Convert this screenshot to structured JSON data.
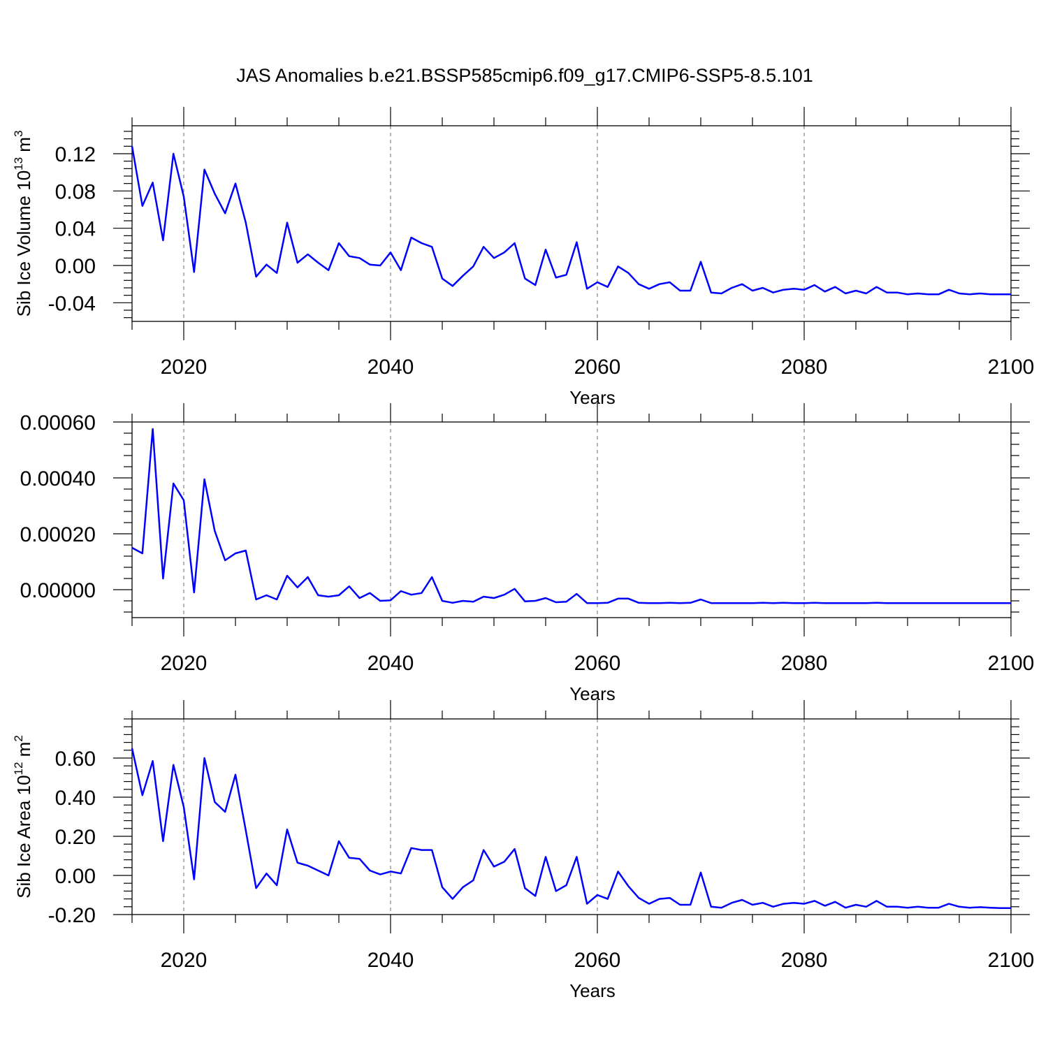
{
  "figure": {
    "title": "JAS Anomalies b.e21.BSSP585cmip6.f09_g17.CMIP6-SSP5-8.5.101",
    "line_color": "#0000ff"
  },
  "chart_data": [
    {
      "type": "line",
      "title": "",
      "xlabel": "Years",
      "ylabel": "Sib Ice Volume 10",
      "ylabel_exp": "13",
      "ylabel_unit": " m",
      "ylabel_unit_exp": "3",
      "xlim": [
        2015,
        2100
      ],
      "ylim": [
        -0.06,
        0.15
      ],
      "x_ticks": [
        2020,
        2040,
        2060,
        2080,
        2100
      ],
      "y_ticks": [
        -0.04,
        0.0,
        0.04,
        0.08,
        0.12
      ],
      "y_tick_labels": [
        "-0.04",
        "0.00",
        "0.04",
        "0.08",
        "0.12"
      ],
      "grid": "vertical dashed",
      "series": [
        {
          "x": [
            2015,
            2016,
            2017,
            2018,
            2019,
            2020,
            2021,
            2022,
            2023,
            2024,
            2025,
            2026,
            2027,
            2028,
            2029,
            2030,
            2031,
            2032,
            2033,
            2034,
            2035,
            2036,
            2037,
            2038,
            2039,
            2040,
            2041,
            2042,
            2043,
            2044,
            2045,
            2046,
            2047,
            2048,
            2049,
            2050,
            2051,
            2052,
            2053,
            2054,
            2055,
            2056,
            2057,
            2058,
            2059,
            2060,
            2061,
            2062,
            2063,
            2064,
            2065,
            2066,
            2067,
            2068,
            2069,
            2070,
            2071,
            2072,
            2073,
            2074,
            2075,
            2076,
            2077,
            2078,
            2079,
            2080,
            2081,
            2082,
            2083,
            2084,
            2085,
            2086,
            2087,
            2088,
            2089,
            2090,
            2091,
            2092,
            2093,
            2094,
            2095,
            2096,
            2097,
            2098,
            2099,
            2100
          ],
          "y": [
            0.128,
            0.064,
            0.089,
            0.027,
            0.12,
            0.074,
            -0.007,
            0.103,
            0.077,
            0.056,
            0.088,
            0.046,
            -0.012,
            0.001,
            -0.008,
            0.046,
            0.003,
            0.012,
            0.003,
            -0.005,
            0.024,
            0.01,
            0.008,
            0.001,
            0.0,
            0.014,
            -0.005,
            0.03,
            0.024,
            0.02,
            -0.014,
            -0.022,
            -0.011,
            -0.001,
            0.02,
            0.008,
            0.014,
            0.024,
            -0.014,
            -0.021,
            0.017,
            -0.013,
            -0.01,
            0.025,
            -0.025,
            -0.018,
            -0.023,
            -0.001,
            -0.008,
            -0.02,
            -0.025,
            -0.02,
            -0.018,
            -0.027,
            -0.027,
            0.004,
            -0.029,
            -0.03,
            -0.024,
            -0.02,
            -0.027,
            -0.024,
            -0.029,
            -0.026,
            -0.025,
            -0.026,
            -0.021,
            -0.028,
            -0.023,
            -0.03,
            -0.027,
            -0.03,
            -0.023,
            -0.029,
            -0.029,
            -0.031,
            -0.03,
            -0.031,
            -0.031,
            -0.026,
            -0.03,
            -0.031,
            -0.03,
            -0.031,
            -0.031,
            -0.031
          ]
        }
      ]
    },
    {
      "type": "line",
      "title": "",
      "xlabel": "Years",
      "ylabel": "",
      "ylabel_exp": "",
      "ylabel_unit": "",
      "ylabel_unit_exp": "",
      "xlim": [
        2015,
        2100
      ],
      "ylim": [
        -0.0001,
        0.0006
      ],
      "x_ticks": [
        2020,
        2040,
        2060,
        2080,
        2100
      ],
      "y_ticks": [
        0.0,
        0.0002,
        0.0004,
        0.0006
      ],
      "y_tick_labels": [
        "0.00000",
        "0.00020",
        "0.00040",
        "0.00060"
      ],
      "grid": "vertical dashed",
      "series": [
        {
          "x": [
            2015,
            2016,
            2017,
            2018,
            2019,
            2020,
            2021,
            2022,
            2023,
            2024,
            2025,
            2026,
            2027,
            2028,
            2029,
            2030,
            2031,
            2032,
            2033,
            2034,
            2035,
            2036,
            2037,
            2038,
            2039,
            2040,
            2041,
            2042,
            2043,
            2044,
            2045,
            2046,
            2047,
            2048,
            2049,
            2050,
            2051,
            2052,
            2053,
            2054,
            2055,
            2056,
            2057,
            2058,
            2059,
            2060,
            2061,
            2062,
            2063,
            2064,
            2065,
            2066,
            2067,
            2068,
            2069,
            2070,
            2071,
            2072,
            2073,
            2074,
            2075,
            2076,
            2077,
            2078,
            2079,
            2080,
            2081,
            2082,
            2083,
            2084,
            2085,
            2086,
            2087,
            2088,
            2089,
            2090,
            2091,
            2092,
            2093,
            2094,
            2095,
            2096,
            2097,
            2098,
            2099,
            2100
          ],
          "y": [
            0.00015,
            0.00013,
            0.000575,
            4e-05,
            0.00038,
            0.00032,
            -1e-05,
            0.000395,
            0.00021,
            0.000105,
            0.00013,
            0.00014,
            -3.5e-05,
            -2e-05,
            -3.5e-05,
            5e-05,
            8e-06,
            4.5e-05,
            -2e-05,
            -2.5e-05,
            -2e-05,
            1.2e-05,
            -3e-05,
            -1.2e-05,
            -4e-05,
            -3.8e-05,
            -5e-06,
            -1.8e-05,
            -1.2e-05,
            4.5e-05,
            -4e-05,
            -4.7e-05,
            -4e-05,
            -4.3e-05,
            -2.5e-05,
            -3e-05,
            -1.8e-05,
            3e-06,
            -4.2e-05,
            -4e-05,
            -3e-05,
            -4.5e-05,
            -4.3e-05,
            -1.5e-05,
            -4.8e-05,
            -4.8e-05,
            -4.7e-05,
            -3.2e-05,
            -3.2e-05,
            -4.7e-05,
            -4.8e-05,
            -4.8e-05,
            -4.7e-05,
            -4.8e-05,
            -4.7e-05,
            -3.5e-05,
            -4.8e-05,
            -4.8e-05,
            -4.8e-05,
            -4.8e-05,
            -4.8e-05,
            -4.7e-05,
            -4.8e-05,
            -4.7e-05,
            -4.8e-05,
            -4.8e-05,
            -4.7e-05,
            -4.8e-05,
            -4.8e-05,
            -4.8e-05,
            -4.8e-05,
            -4.8e-05,
            -4.7e-05,
            -4.8e-05,
            -4.8e-05,
            -4.8e-05,
            -4.8e-05,
            -4.8e-05,
            -4.8e-05,
            -4.8e-05,
            -4.8e-05,
            -4.8e-05,
            -4.8e-05,
            -4.8e-05,
            -4.8e-05,
            -4.8e-05
          ]
        }
      ]
    },
    {
      "type": "line",
      "title": "",
      "xlabel": "Years",
      "ylabel": "Sib Ice Area 10",
      "ylabel_exp": "12",
      "ylabel_unit": " m",
      "ylabel_unit_exp": "2",
      "xlim": [
        2015,
        2100
      ],
      "ylim": [
        -0.2,
        0.8
      ],
      "x_ticks": [
        2020,
        2040,
        2060,
        2080,
        2100
      ],
      "y_ticks": [
        -0.2,
        0.0,
        0.2,
        0.4,
        0.6
      ],
      "y_tick_labels": [
        "-0.20",
        "0.00",
        "0.20",
        "0.40",
        "0.60"
      ],
      "grid": "vertical dashed",
      "series": [
        {
          "x": [
            2015,
            2016,
            2017,
            2018,
            2019,
            2020,
            2021,
            2022,
            2023,
            2024,
            2025,
            2026,
            2027,
            2028,
            2029,
            2030,
            2031,
            2032,
            2033,
            2034,
            2035,
            2036,
            2037,
            2038,
            2039,
            2040,
            2041,
            2042,
            2043,
            2044,
            2045,
            2046,
            2047,
            2048,
            2049,
            2050,
            2051,
            2052,
            2053,
            2054,
            2055,
            2056,
            2057,
            2058,
            2059,
            2060,
            2061,
            2062,
            2063,
            2064,
            2065,
            2066,
            2067,
            2068,
            2069,
            2070,
            2071,
            2072,
            2073,
            2074,
            2075,
            2076,
            2077,
            2078,
            2079,
            2080,
            2081,
            2082,
            2083,
            2084,
            2085,
            2086,
            2087,
            2088,
            2089,
            2090,
            2091,
            2092,
            2093,
            2094,
            2095,
            2096,
            2097,
            2098,
            2099,
            2100
          ],
          "y": [
            0.65,
            0.41,
            0.585,
            0.175,
            0.565,
            0.35,
            -0.02,
            0.6,
            0.375,
            0.325,
            0.515,
            0.23,
            -0.065,
            0.01,
            -0.05,
            0.235,
            0.065,
            0.05,
            0.025,
            0.0,
            0.175,
            0.09,
            0.085,
            0.025,
            0.005,
            0.02,
            0.01,
            0.14,
            0.13,
            0.13,
            -0.06,
            -0.12,
            -0.06,
            -0.025,
            0.13,
            0.045,
            0.07,
            0.135,
            -0.065,
            -0.105,
            0.095,
            -0.08,
            -0.05,
            0.095,
            -0.145,
            -0.1,
            -0.12,
            0.02,
            -0.055,
            -0.115,
            -0.145,
            -0.12,
            -0.115,
            -0.15,
            -0.15,
            0.015,
            -0.16,
            -0.165,
            -0.14,
            -0.125,
            -0.15,
            -0.14,
            -0.16,
            -0.145,
            -0.14,
            -0.145,
            -0.13,
            -0.155,
            -0.135,
            -0.165,
            -0.15,
            -0.16,
            -0.13,
            -0.16,
            -0.16,
            -0.165,
            -0.16,
            -0.165,
            -0.165,
            -0.145,
            -0.16,
            -0.165,
            -0.162,
            -0.165,
            -0.167,
            -0.167
          ]
        }
      ]
    }
  ]
}
